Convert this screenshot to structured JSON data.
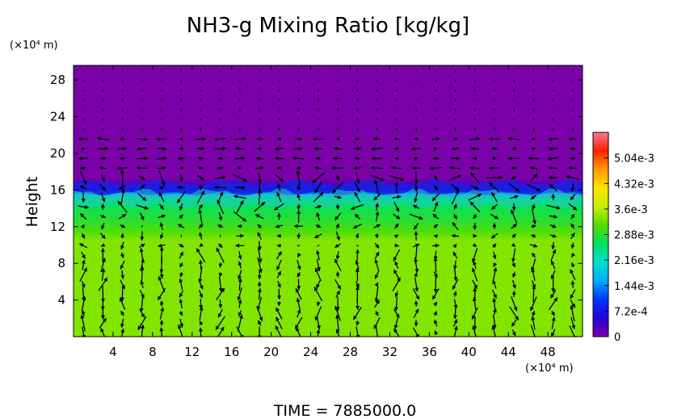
{
  "chart_data": {
    "type": "heatmap",
    "title": "NH3-g Mixing Ratio [kg/kg]",
    "xlabel": "",
    "ylabel": "Height",
    "x_unit": "(×10⁴ m)",
    "y_unit": "(×10⁴ m)",
    "xlim": [
      0,
      51.5
    ],
    "ylim": [
      0,
      29.6
    ],
    "x_ticks": [
      4,
      8,
      12,
      16,
      20,
      24,
      28,
      32,
      36,
      40,
      44,
      48
    ],
    "y_ticks": [
      4,
      8,
      12,
      16,
      20,
      24,
      28
    ],
    "colorbar": {
      "min": 0,
      "max": 0.00576,
      "tick_values": [
        0,
        0.00072,
        0.00144,
        0.00216,
        0.00288,
        0.0036,
        0.00432,
        0.00504
      ],
      "tick_labels": [
        "0",
        "7.2e-4",
        "1.44e-3",
        "2.16e-3",
        "2.88e-3",
        "3.6e-3",
        "4.32e-3",
        "5.04e-3"
      ],
      "colors": [
        "#7a00a8",
        "#2200d8",
        "#0033ff",
        "#00aaff",
        "#00ddcc",
        "#00e060",
        "#55dd00",
        "#c4f000",
        "#ffe400",
        "#ff9a00",
        "#ff2000",
        "#ff7890"
      ]
    },
    "field_profile": [
      {
        "height": 0,
        "value": 0.00335
      },
      {
        "height": 10.5,
        "value": 0.00335
      },
      {
        "height": 11.5,
        "value": 0.0031
      },
      {
        "height": 12.5,
        "value": 0.0029
      },
      {
        "height": 14.0,
        "value": 0.0027
      },
      {
        "height": 15.0,
        "value": 0.0025
      },
      {
        "height": 15.5,
        "value": 0.0017
      },
      {
        "height": 16.0,
        "value": 0.0008
      },
      {
        "height": 16.7,
        "value": 0.0002
      },
      {
        "height": 17.3,
        "value": 0
      },
      {
        "height": 29.6,
        "value": 0
      }
    ],
    "wind_arrows_shown": true,
    "footer": "TIME = 7885000.0"
  }
}
